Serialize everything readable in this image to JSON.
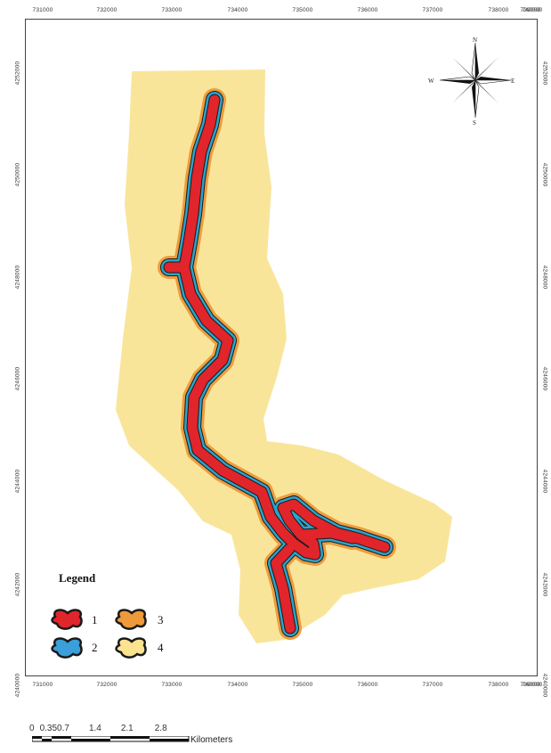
{
  "map": {
    "x_ticks": [
      "731000",
      "732000",
      "733000",
      "734000",
      "735000",
      "736000",
      "737000",
      "738000",
      "739000",
      "740000"
    ],
    "y_ticks": [
      "4252000",
      "4250000",
      "4248000",
      "4246000",
      "4244000",
      "4242000",
      "4240000"
    ]
  },
  "compass": {
    "n": "N",
    "s": "S",
    "e": "E",
    "w": "W"
  },
  "legend": {
    "title": "Legend",
    "items": [
      {
        "label": "1",
        "color": "#e1252b"
      },
      {
        "label": "2",
        "color": "#3a9fdb"
      },
      {
        "label": "3",
        "color": "#ef9a3a"
      },
      {
        "label": "4",
        "color": "#fbe38f"
      }
    ]
  },
  "colors": {
    "zone_1": "#e1252b",
    "zone_2": "#2ba4cc",
    "zone_3": "#ee9d3e",
    "zone_4": "#f9e59a",
    "outline": "#1a1a1a"
  },
  "scale_bar": {
    "labels": [
      "0",
      "0.35",
      "0.7",
      "1.4",
      "2.1",
      "2.8"
    ],
    "unit": "Kilometers"
  }
}
